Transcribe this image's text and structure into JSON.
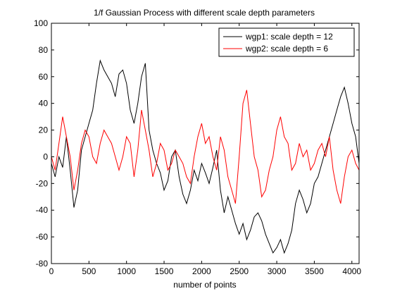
{
  "chart_data": {
    "type": "line",
    "title": "1/f Gaussian Process with different scale depth parameters",
    "xlabel": "number of points",
    "ylabel": "",
    "xlim": [
      0,
      4096
    ],
    "ylim": [
      -80,
      100
    ],
    "xticks": [
      0,
      500,
      1000,
      1500,
      2000,
      2500,
      3000,
      3500,
      4000
    ],
    "yticks": [
      -80,
      -60,
      -40,
      -20,
      0,
      20,
      40,
      60,
      80,
      100
    ],
    "grid": false,
    "legend_position": "top-right",
    "series": [
      {
        "name": "wgp1: scale depth = 12",
        "color": "#000000",
        "x": [
          0,
          50,
          100,
          150,
          200,
          250,
          300,
          350,
          400,
          450,
          500,
          550,
          600,
          650,
          700,
          750,
          800,
          850,
          900,
          950,
          1000,
          1050,
          1100,
          1150,
          1200,
          1250,
          1300,
          1350,
          1400,
          1450,
          1500,
          1550,
          1600,
          1650,
          1700,
          1750,
          1800,
          1850,
          1900,
          1950,
          2000,
          2050,
          2100,
          2150,
          2200,
          2250,
          2300,
          2350,
          2400,
          2450,
          2500,
          2550,
          2600,
          2650,
          2700,
          2750,
          2800,
          2850,
          2900,
          2950,
          3000,
          3050,
          3100,
          3150,
          3200,
          3250,
          3300,
          3350,
          3400,
          3450,
          3500,
          3550,
          3600,
          3650,
          3700,
          3750,
          3800,
          3850,
          3900,
          3950,
          4000,
          4050,
          4096
        ],
        "y": [
          -5,
          -15,
          0,
          -8,
          15,
          -10,
          -38,
          -25,
          5,
          15,
          25,
          35,
          55,
          72,
          65,
          60,
          55,
          45,
          62,
          65,
          55,
          35,
          25,
          40,
          60,
          70,
          20,
          5,
          -5,
          -12,
          -25,
          -18,
          0,
          5,
          -15,
          -28,
          -35,
          -25,
          -10,
          -18,
          -5,
          -12,
          -20,
          -8,
          5,
          -25,
          -42,
          -30,
          -40,
          -50,
          -58,
          -50,
          -62,
          -55,
          -45,
          -42,
          -48,
          -58,
          -65,
          -72,
          -68,
          -62,
          -72,
          -65,
          -55,
          -35,
          -25,
          -32,
          -42,
          -35,
          -20,
          -15,
          -5,
          5,
          15,
          25,
          35,
          45,
          52,
          40,
          25,
          15,
          -5
        ]
      },
      {
        "name": "wgp2: scale depth = 6",
        "color": "#ff0000",
        "x": [
          0,
          50,
          100,
          150,
          200,
          250,
          300,
          350,
          400,
          450,
          500,
          550,
          600,
          650,
          700,
          750,
          800,
          850,
          900,
          950,
          1000,
          1050,
          1100,
          1150,
          1200,
          1250,
          1300,
          1350,
          1400,
          1450,
          1500,
          1550,
          1600,
          1650,
          1700,
          1750,
          1800,
          1850,
          1900,
          1950,
          2000,
          2050,
          2100,
          2150,
          2200,
          2250,
          2300,
          2350,
          2400,
          2450,
          2500,
          2550,
          2600,
          2650,
          2700,
          2750,
          2800,
          2850,
          2900,
          2950,
          3000,
          3050,
          3100,
          3150,
          3200,
          3250,
          3300,
          3350,
          3400,
          3450,
          3500,
          3550,
          3600,
          3650,
          3700,
          3750,
          3800,
          3850,
          3900,
          3950,
          4000,
          4050,
          4096
        ],
        "y": [
          0,
          -10,
          10,
          30,
          15,
          0,
          -25,
          -10,
          10,
          20,
          15,
          0,
          -5,
          10,
          20,
          15,
          10,
          0,
          -10,
          0,
          15,
          10,
          -15,
          5,
          35,
          20,
          5,
          -15,
          -5,
          10,
          5,
          -10,
          -5,
          5,
          0,
          -5,
          -15,
          -20,
          0,
          15,
          25,
          10,
          15,
          0,
          -10,
          15,
          5,
          -15,
          -25,
          -35,
          0,
          40,
          50,
          25,
          0,
          -10,
          -30,
          -25,
          -10,
          0,
          20,
          30,
          15,
          10,
          -10,
          -5,
          10,
          0,
          5,
          -10,
          -5,
          5,
          10,
          0,
          15,
          -10,
          -25,
          -35,
          -15,
          0,
          5,
          -5,
          -10
        ]
      }
    ]
  }
}
